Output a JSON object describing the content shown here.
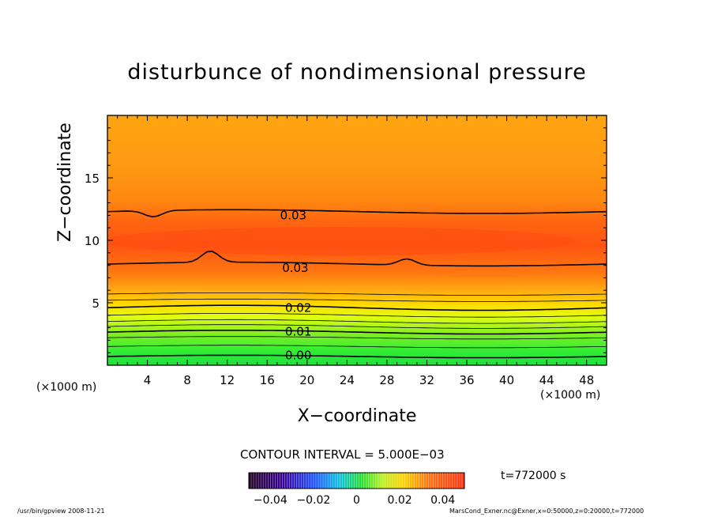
{
  "chart_data": {
    "type": "contour",
    "title": "disturbunce of nondimensional pressure",
    "xlabel": "X−coordinate",
    "ylabel": "Z−coordinate",
    "x_unit_label": "(×1000 m)",
    "y_unit_label": "(×1000 m)",
    "xlim": [
      0,
      50
    ],
    "ylim": [
      0,
      20
    ],
    "x_ticks": [
      "4",
      "8",
      "12",
      "16",
      "20",
      "24",
      "28",
      "32",
      "36",
      "40",
      "44",
      "48"
    ],
    "x_tick_values": [
      4,
      8,
      12,
      16,
      20,
      24,
      28,
      32,
      36,
      40,
      44,
      48
    ],
    "y_ticks": [
      "5",
      "10",
      "15"
    ],
    "y_tick_values": [
      5,
      10,
      15
    ],
    "contour_labels": [
      {
        "text": "0.03",
        "x": 17.3,
        "z": 12.0
      },
      {
        "text": "0.03",
        "x": 17.5,
        "z": 7.8
      },
      {
        "text": "0.02",
        "x": 17.8,
        "z": 4.6
      },
      {
        "text": "0.01",
        "x": 17.8,
        "z": 2.7
      },
      {
        "text": "0.00",
        "x": 17.8,
        "z": 0.8
      }
    ],
    "contour_interval": "CONTOUR INTERVAL = 5.000E−03",
    "colorbar_ticks": [
      "−0.04",
      "−0.02",
      "0",
      "0.02",
      "0.04"
    ],
    "colorbar_tick_values": [
      -0.04,
      -0.02,
      0,
      0.02,
      0.04
    ],
    "colorbar_range": [
      -0.05,
      0.05
    ],
    "time_label": "t=772000 s",
    "footer_left": "/usr/bin/gpview   2008-11-21",
    "footer_right": "MarsCond_Exner.nc@Exner,x=0:50000,z=0:20000,t=772000"
  }
}
